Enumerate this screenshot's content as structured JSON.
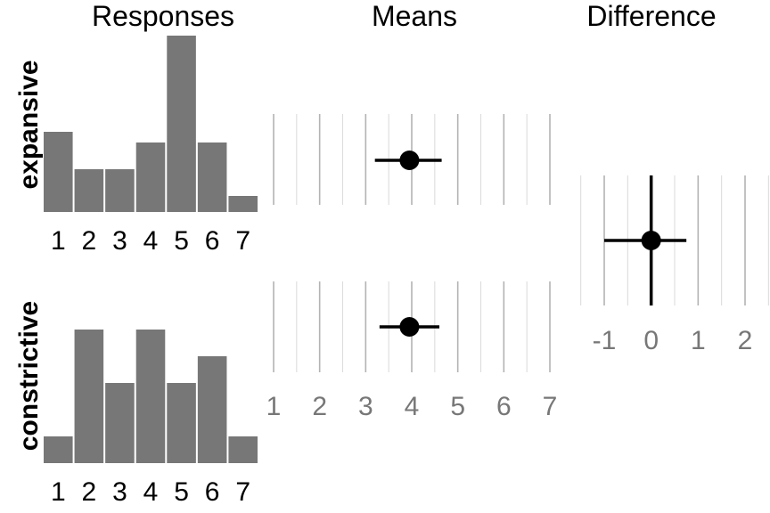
{
  "colors": {
    "bar": "#777777",
    "grid": "#bdbdbd",
    "point": "#000000",
    "tick_grey": "#777777"
  },
  "chart_data": [
    {
      "type": "bar",
      "panel": "responses",
      "title": "Responses",
      "row_label": "expansive",
      "categories": [
        "1",
        "2",
        "3",
        "4",
        "5",
        "6",
        "7"
      ],
      "values": [
        3,
        1.6,
        1.6,
        2.6,
        6.6,
        2.6,
        0.6
      ],
      "ylim": [
        0,
        6.6
      ],
      "grid": false
    },
    {
      "type": "bar",
      "panel": "responses",
      "row_label": "constrictive",
      "categories": [
        "1",
        "2",
        "3",
        "4",
        "5",
        "6",
        "7"
      ],
      "values": [
        1,
        5,
        3,
        5,
        3,
        4,
        1
      ],
      "ylim": [
        0,
        6.6
      ],
      "grid": false
    },
    {
      "type": "scatter",
      "panel": "means",
      "title": "Means",
      "row": "expansive",
      "xlim": [
        1,
        7
      ],
      "x_ticks": [],
      "point": {
        "x": 3.95,
        "lo": 3.2,
        "hi": 4.65
      },
      "grid": true
    },
    {
      "type": "scatter",
      "panel": "means",
      "row": "constrictive",
      "xlim": [
        1,
        7
      ],
      "x_ticks": [
        "1",
        "2",
        "3",
        "4",
        "5",
        "6",
        "7"
      ],
      "point": {
        "x": 3.95,
        "lo": 3.3,
        "hi": 4.6
      },
      "grid": true
    },
    {
      "type": "scatter",
      "panel": "difference",
      "title": "Difference",
      "xlim": [
        -1,
        2
      ],
      "x_ticks": [
        "-1",
        "0",
        "1",
        "2"
      ],
      "point": {
        "x": 0,
        "lo": -1,
        "hi": 0.75,
        "y_lo": -1,
        "y_hi": 1
      },
      "grid": true
    }
  ]
}
